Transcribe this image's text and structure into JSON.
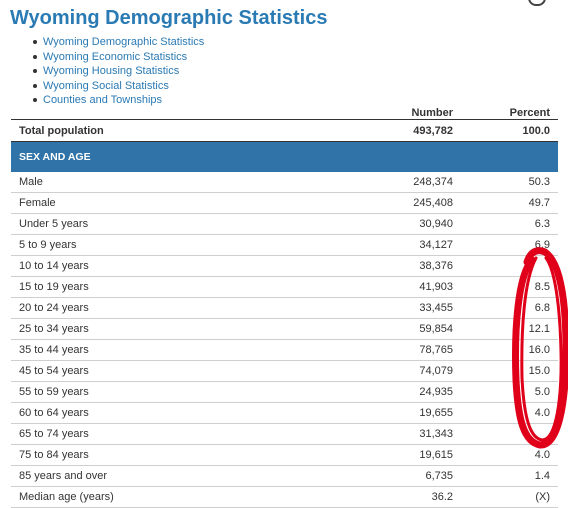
{
  "header": {
    "title": "Wyoming Demographic Statistics"
  },
  "nav_links": [
    "Wyoming Demographic Statistics",
    "Wyoming Economic Statistics",
    "Wyoming Housing Statistics",
    "Wyoming Social Statistics",
    "Counties and Townships"
  ],
  "table": {
    "columns": {
      "number": "Number",
      "percent": "Percent"
    },
    "total": {
      "label": "Total population",
      "number": "493,782",
      "percent": "100.0"
    },
    "section_title": "SEX AND AGE",
    "rows": [
      {
        "label": "Male",
        "number": "248,374",
        "percent": "50.3"
      },
      {
        "label": "Female",
        "number": "245,408",
        "percent": "49.7"
      },
      {
        "label": "Under 5 years",
        "number": "30,940",
        "percent": "6.3"
      },
      {
        "label": "5 to 9 years",
        "number": "34,127",
        "percent": "6.9"
      },
      {
        "label": "10 to 14 years",
        "number": "38,376",
        "percent": ""
      },
      {
        "label": "15 to 19 years",
        "number": "41,903",
        "percent": "8.5"
      },
      {
        "label": "20 to 24 years",
        "number": "33,455",
        "percent": "6.8"
      },
      {
        "label": "25 to 34 years",
        "number": "59,854",
        "percent": "12.1"
      },
      {
        "label": "35 to 44 years",
        "number": "78,765",
        "percent": "16.0"
      },
      {
        "label": "45 to 54 years",
        "number": "74,079",
        "percent": "15.0"
      },
      {
        "label": "55 to 59 years",
        "number": "24,935",
        "percent": "5.0"
      },
      {
        "label": "60 to 64 years",
        "number": "19,655",
        "percent": "4.0"
      },
      {
        "label": "65 to 74 years",
        "number": "31,343",
        "percent": ""
      },
      {
        "label": "75 to 84 years",
        "number": "19,615",
        "percent": "4.0"
      },
      {
        "label": "85 years and over",
        "number": "6,735",
        "percent": "1.4"
      },
      {
        "label": "Median age (years)",
        "number": "36.2",
        "percent": "(X)"
      }
    ]
  },
  "colors": {
    "link": "#2a7ab4",
    "section_bg": "#2f73a8",
    "annotation": "#e0001a"
  },
  "annotation": {
    "shape": "red-hand-drawn-ellipse",
    "target": "percent-column"
  }
}
